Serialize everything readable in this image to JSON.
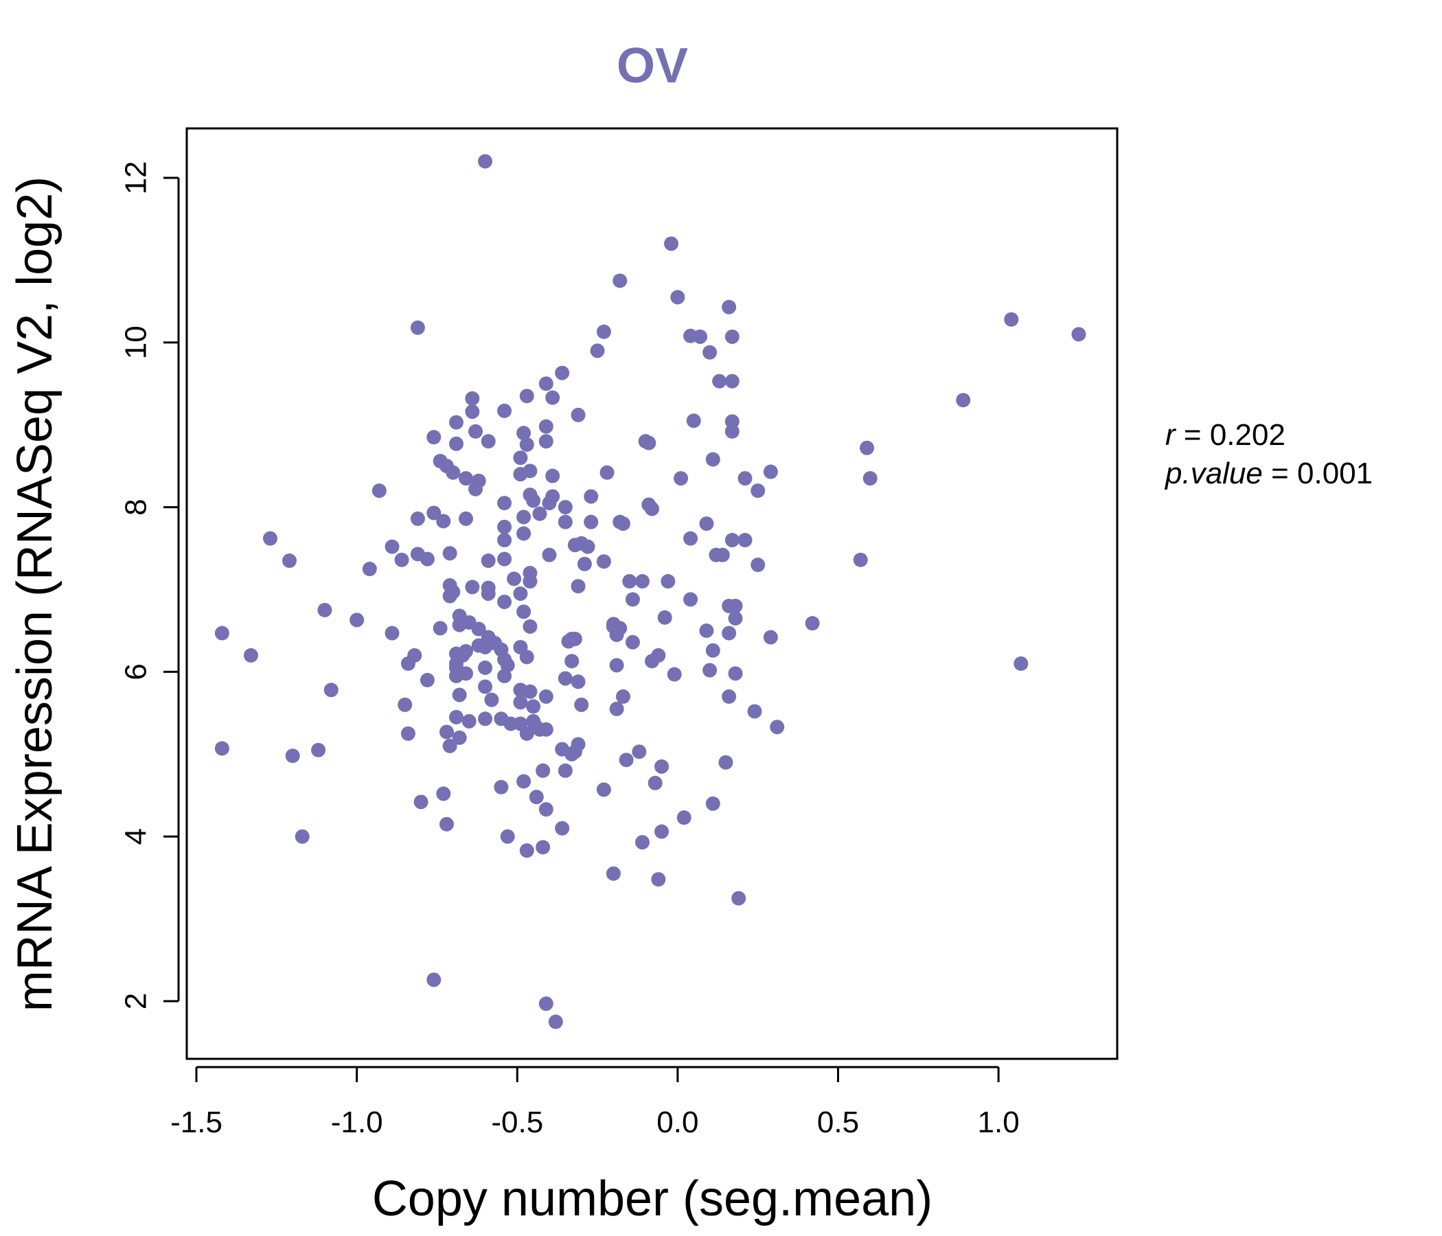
{
  "chart_data": {
    "type": "scatter",
    "title": "OV",
    "xlabel": "Copy number (seg.mean)",
    "ylabel": "mRNA Expression (RNASeq V2, log2)",
    "xlim": [
      -1.53,
      1.37
    ],
    "ylim": [
      1.3,
      12.6
    ],
    "xticks": [
      -1.5,
      -1.0,
      -0.5,
      0.0,
      0.5,
      1.0
    ],
    "xtick_labels": [
      "-1.5",
      "-1.0",
      "-0.5",
      "0.0",
      "0.5",
      "1.0"
    ],
    "yticks": [
      2,
      4,
      6,
      8,
      10,
      12
    ],
    "ytick_labels": [
      "2",
      "4",
      "6",
      "8",
      "10",
      "12"
    ],
    "point_color": "#7570b3",
    "title_color": "#7570b3",
    "stats": {
      "r_label": "r",
      "r_value": "0.202",
      "p_label": "p.value",
      "p_value": "0.001"
    },
    "points": [
      [
        -0.6,
        12.2
      ],
      [
        -0.02,
        11.2
      ],
      [
        -0.18,
        10.75
      ],
      [
        0.0,
        10.55
      ],
      [
        0.16,
        10.43
      ],
      [
        -0.81,
        10.18
      ],
      [
        1.04,
        10.28
      ],
      [
        1.25,
        10.1
      ],
      [
        -0.23,
        10.13
      ],
      [
        0.04,
        10.08
      ],
      [
        0.07,
        10.07
      ],
      [
        0.17,
        10.07
      ],
      [
        -0.25,
        9.9
      ],
      [
        0.1,
        9.88
      ],
      [
        -0.36,
        9.63
      ],
      [
        -0.41,
        9.5
      ],
      [
        0.13,
        9.53
      ],
      [
        0.17,
        9.53
      ],
      [
        -0.47,
        9.35
      ],
      [
        -0.39,
        9.33
      ],
      [
        -0.64,
        9.32
      ],
      [
        0.89,
        9.3
      ],
      [
        -0.54,
        9.17
      ],
      [
        -0.64,
        9.16
      ],
      [
        -0.31,
        9.12
      ],
      [
        -0.69,
        9.03
      ],
      [
        0.05,
        9.05
      ],
      [
        0.17,
        9.04
      ],
      [
        -0.41,
        8.98
      ],
      [
        -0.63,
        8.92
      ],
      [
        -0.48,
        8.9
      ],
      [
        0.17,
        8.92
      ],
      [
        -0.76,
        8.85
      ],
      [
        -0.59,
        8.8
      ],
      [
        -0.41,
        8.8
      ],
      [
        -0.1,
        8.8
      ],
      [
        -0.09,
        8.78
      ],
      [
        -0.69,
        8.77
      ],
      [
        -0.47,
        8.76
      ],
      [
        0.59,
        8.72
      ],
      [
        -0.49,
        8.6
      ],
      [
        0.11,
        8.58
      ],
      [
        -0.74,
        8.56
      ],
      [
        -0.72,
        8.5
      ],
      [
        -0.7,
        8.42
      ],
      [
        -0.22,
        8.42
      ],
      [
        -0.46,
        8.44
      ],
      [
        0.29,
        8.43
      ],
      [
        -0.49,
        8.4
      ],
      [
        -0.39,
        8.38
      ],
      [
        0.6,
        8.35
      ],
      [
        -0.66,
        8.35
      ],
      [
        -0.62,
        8.32
      ],
      [
        0.01,
        8.35
      ],
      [
        0.21,
        8.35
      ],
      [
        -0.63,
        8.22
      ],
      [
        0.25,
        8.2
      ],
      [
        -0.93,
        8.2
      ],
      [
        -0.46,
        8.15
      ],
      [
        -0.39,
        8.13
      ],
      [
        -0.27,
        8.13
      ],
      [
        -0.45,
        8.08
      ],
      [
        -0.4,
        8.05
      ],
      [
        -0.54,
        8.05
      ],
      [
        -0.09,
        8.03
      ],
      [
        -0.35,
        8.0
      ],
      [
        -0.08,
        7.98
      ],
      [
        -0.76,
        7.93
      ],
      [
        -0.43,
        7.92
      ],
      [
        -0.48,
        7.88
      ],
      [
        -0.81,
        7.86
      ],
      [
        -0.66,
        7.86
      ],
      [
        -0.73,
        7.83
      ],
      [
        -0.35,
        7.82
      ],
      [
        -0.27,
        7.82
      ],
      [
        -0.18,
        7.82
      ],
      [
        -0.17,
        7.8
      ],
      [
        -0.54,
        7.76
      ],
      [
        0.09,
        7.8
      ],
      [
        -0.48,
        7.68
      ],
      [
        -1.27,
        7.62
      ],
      [
        0.04,
        7.62
      ],
      [
        0.17,
        7.6
      ],
      [
        0.21,
        7.6
      ],
      [
        -0.54,
        7.6
      ],
      [
        -0.3,
        7.56
      ],
      [
        -0.32,
        7.54
      ],
      [
        -0.28,
        7.52
      ],
      [
        -0.89,
        7.52
      ],
      [
        -0.71,
        7.44
      ],
      [
        -0.81,
        7.43
      ],
      [
        -0.4,
        7.42
      ],
      [
        0.12,
        7.42
      ],
      [
        0.14,
        7.42
      ],
      [
        -0.78,
        7.37
      ],
      [
        -0.54,
        7.37
      ],
      [
        -0.86,
        7.36
      ],
      [
        -1.21,
        7.35
      ],
      [
        -0.59,
        7.35
      ],
      [
        0.57,
        7.36
      ],
      [
        -0.23,
        7.34
      ],
      [
        -0.29,
        7.31
      ],
      [
        0.25,
        7.3
      ],
      [
        -0.96,
        7.25
      ],
      [
        -0.46,
        7.2
      ],
      [
        -0.51,
        7.13
      ],
      [
        -0.46,
        7.1
      ],
      [
        -0.15,
        7.1
      ],
      [
        -0.11,
        7.1
      ],
      [
        -0.03,
        7.1
      ],
      [
        -0.71,
        7.05
      ],
      [
        -0.31,
        7.04
      ],
      [
        -0.64,
        7.03
      ],
      [
        -0.59,
        7.02
      ],
      [
        -0.7,
        6.97
      ],
      [
        -0.59,
        6.95
      ],
      [
        -0.49,
        6.95
      ],
      [
        -0.71,
        6.92
      ],
      [
        -0.14,
        6.88
      ],
      [
        0.04,
        6.88
      ],
      [
        -0.54,
        6.85
      ],
      [
        0.16,
        6.8
      ],
      [
        0.18,
        6.8
      ],
      [
        -1.1,
        6.75
      ],
      [
        -0.48,
        6.73
      ],
      [
        -0.68,
        6.68
      ],
      [
        -0.04,
        6.66
      ],
      [
        0.18,
        6.65
      ],
      [
        -1.0,
        6.63
      ],
      [
        -0.65,
        6.6
      ],
      [
        0.42,
        6.59
      ],
      [
        -0.2,
        6.58
      ],
      [
        -0.46,
        6.55
      ],
      [
        -0.2,
        6.55
      ],
      [
        -0.18,
        6.53
      ],
      [
        -0.74,
        6.53
      ],
      [
        -0.68,
        6.57
      ],
      [
        -0.62,
        6.52
      ],
      [
        0.09,
        6.5
      ],
      [
        0.16,
        6.47
      ],
      [
        -1.42,
        6.47
      ],
      [
        -0.89,
        6.47
      ],
      [
        -0.19,
        6.45
      ],
      [
        -0.59,
        6.42
      ],
      [
        -0.33,
        6.4
      ],
      [
        -0.32,
        6.4
      ],
      [
        0.29,
        6.42
      ],
      [
        -0.14,
        6.36
      ],
      [
        -0.57,
        6.35
      ],
      [
        -0.34,
        6.37
      ],
      [
        -0.62,
        6.32
      ],
      [
        -0.6,
        6.3
      ],
      [
        -0.49,
        6.3
      ],
      [
        -0.55,
        6.27
      ],
      [
        -0.66,
        6.25
      ],
      [
        0.11,
        6.26
      ],
      [
        -0.69,
        6.22
      ],
      [
        -0.67,
        6.2
      ],
      [
        -1.33,
        6.2
      ],
      [
        -0.82,
        6.2
      ],
      [
        -0.06,
        6.2
      ],
      [
        -0.47,
        6.18
      ],
      [
        -0.84,
        6.1
      ],
      [
        -0.54,
        6.15
      ],
      [
        -0.33,
        6.13
      ],
      [
        -0.08,
        6.13
      ],
      [
        -0.69,
        6.1
      ],
      [
        1.07,
        6.1
      ],
      [
        -0.53,
        6.08
      ],
      [
        -0.19,
        6.08
      ],
      [
        -0.69,
        6.05
      ],
      [
        -0.6,
        6.05
      ],
      [
        0.1,
        6.02
      ],
      [
        -0.66,
        5.98
      ],
      [
        -0.69,
        5.95
      ],
      [
        -0.54,
        5.95
      ],
      [
        0.18,
        5.98
      ],
      [
        -0.01,
        5.97
      ],
      [
        -0.35,
        5.92
      ],
      [
        -0.31,
        5.88
      ],
      [
        -0.78,
        5.9
      ],
      [
        -0.6,
        5.82
      ],
      [
        -0.49,
        5.78
      ],
      [
        -0.46,
        5.76
      ],
      [
        -1.08,
        5.78
      ],
      [
        -0.68,
        5.72
      ],
      [
        -0.41,
        5.7
      ],
      [
        -0.17,
        5.7
      ],
      [
        0.16,
        5.7
      ],
      [
        -0.58,
        5.66
      ],
      [
        -0.49,
        5.63
      ],
      [
        -0.3,
        5.6
      ],
      [
        -0.85,
        5.6
      ],
      [
        -0.45,
        5.58
      ],
      [
        -0.19,
        5.55
      ],
      [
        0.24,
        5.52
      ],
      [
        -0.69,
        5.45
      ],
      [
        -0.6,
        5.43
      ],
      [
        -0.65,
        5.4
      ],
      [
        -0.55,
        5.43
      ],
      [
        -0.45,
        5.4
      ],
      [
        -0.52,
        5.37
      ],
      [
        -0.49,
        5.37
      ],
      [
        -0.44,
        5.33
      ],
      [
        0.31,
        5.33
      ],
      [
        -0.72,
        5.27
      ],
      [
        -0.84,
        5.25
      ],
      [
        -0.47,
        5.25
      ],
      [
        -0.43,
        5.3
      ],
      [
        -0.41,
        5.3
      ],
      [
        -0.68,
        5.2
      ],
      [
        -0.71,
        5.1
      ],
      [
        -0.31,
        5.12
      ],
      [
        -0.36,
        5.06
      ],
      [
        -0.32,
        5.03
      ],
      [
        -0.33,
        5.0
      ],
      [
        -1.42,
        5.07
      ],
      [
        -1.12,
        5.05
      ],
      [
        -0.12,
        5.03
      ],
      [
        -1.2,
        4.98
      ],
      [
        -0.16,
        4.93
      ],
      [
        0.15,
        4.9
      ],
      [
        -0.05,
        4.85
      ],
      [
        -0.35,
        4.8
      ],
      [
        -0.42,
        4.8
      ],
      [
        -0.48,
        4.67
      ],
      [
        -0.07,
        4.65
      ],
      [
        -0.55,
        4.6
      ],
      [
        -0.23,
        4.57
      ],
      [
        -0.73,
        4.52
      ],
      [
        -0.44,
        4.48
      ],
      [
        -0.8,
        4.42
      ],
      [
        0.11,
        4.4
      ],
      [
        -0.41,
        4.33
      ],
      [
        0.02,
        4.23
      ],
      [
        -0.72,
        4.15
      ],
      [
        -0.36,
        4.1
      ],
      [
        -0.05,
        4.06
      ],
      [
        -1.17,
        4.0
      ],
      [
        -0.53,
        4.0
      ],
      [
        -0.11,
        3.93
      ],
      [
        -0.42,
        3.87
      ],
      [
        -0.47,
        3.83
      ],
      [
        -0.2,
        3.55
      ],
      [
        -0.06,
        3.48
      ],
      [
        0.19,
        3.25
      ],
      [
        -0.76,
        2.26
      ],
      [
        -0.41,
        1.97
      ],
      [
        -0.38,
        1.75
      ]
    ]
  }
}
